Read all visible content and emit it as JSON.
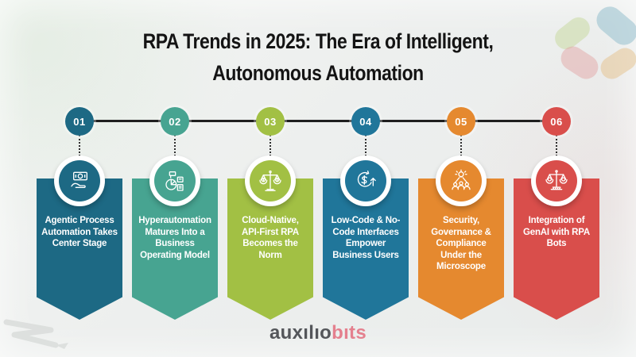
{
  "title": {
    "line1": "RPA Trends in 2025: The Era of Intelligent,",
    "line2": "Autonomous Automation"
  },
  "timeline": {
    "items": [
      {
        "number": "01",
        "label": "Agentic Process Automation Takes Center Stage",
        "color": "#1d6984",
        "icon": "money-hand-icon"
      },
      {
        "number": "02",
        "label": "Hyperautomation Matures Into a Business Operating Model",
        "color": "#47a491",
        "icon": "pie-chart-report-icon"
      },
      {
        "number": "03",
        "label": "Cloud-Native, API-First RPA Becomes the Norm",
        "color": "#a2c044",
        "icon": "dollar-balance-icon"
      },
      {
        "number": "04",
        "label": "Low-Code & No-Code Interfaces Empower Business Users",
        "color": "#20769a",
        "icon": "dollar-growth-icon"
      },
      {
        "number": "05",
        "label": "Security, Governance & Compliance Under the Microscope",
        "color": "#e5892f",
        "icon": "team-idea-icon"
      },
      {
        "number": "06",
        "label": "Integration of GenAI with RPA Bots",
        "color": "#d94e4b",
        "icon": "justice-scale-icon"
      }
    ]
  },
  "brand": {
    "part1": "auxılıo",
    "part2": "bıts",
    "part1_color": "#54565a",
    "part2_color": "#e4808e"
  }
}
